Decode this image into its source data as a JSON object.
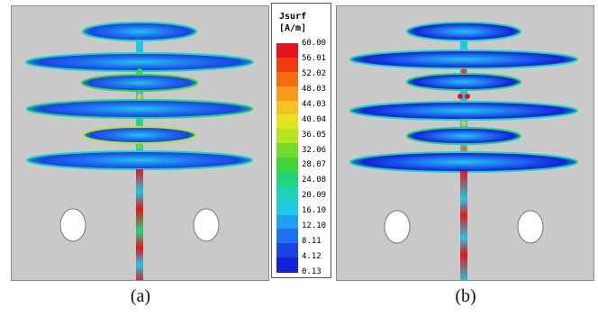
{
  "legend": {
    "title_line1": "Jsurf",
    "title_line2": "[A/m]",
    "ticks": [
      "60.00",
      "56.01",
      "52.02",
      "48.03",
      "44.03",
      "40.04",
      "36.05",
      "32.06",
      "28.07",
      "24.08",
      "20.09",
      "16.10",
      "12.10",
      "8.11",
      "4.12",
      "0.13"
    ],
    "colors": [
      "#e8141b",
      "#f03a10",
      "#f76a10",
      "#f79a1c",
      "#f4c11f",
      "#e4e41e",
      "#b4e620",
      "#74da2a",
      "#3ed43a",
      "#22d47a",
      "#1ed4b8",
      "#1ec8e4",
      "#1fa0f0",
      "#1f72f0",
      "#1a44e6",
      "#1222d8"
    ]
  },
  "captions": {
    "a": "(a)",
    "b": "(b)"
  },
  "colors": {
    "background": "#c9c9c9",
    "hole": "#ffffff",
    "dominant": "#1f72f0",
    "hot": "#e8141b"
  }
}
